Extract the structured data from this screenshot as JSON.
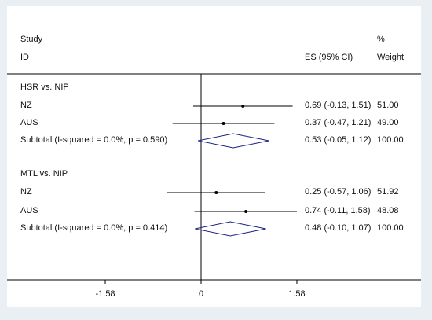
{
  "chart_data": {
    "type": "forest",
    "headers": {
      "study": "Study",
      "id": "ID",
      "es": "ES (95% CI)",
      "pct": "%",
      "weight": "Weight"
    },
    "x_ticks": [
      {
        "value": -1.58,
        "label": "-1.58"
      },
      {
        "value": 0,
        "label": "0"
      },
      {
        "value": 1.58,
        "label": "1.58"
      }
    ],
    "xlim": [
      -1.58,
      2.0
    ],
    "groups": [
      {
        "label": "HSR vs. NIP",
        "studies": [
          {
            "id": "NZ",
            "es": 0.69,
            "lo": -0.13,
            "hi": 1.51,
            "ci_text": "0.69 (-0.13, 1.51)",
            "weight": "51.00"
          },
          {
            "id": "AUS",
            "es": 0.37,
            "lo": -0.47,
            "hi": 1.21,
            "ci_text": "0.37 (-0.47, 1.21)",
            "weight": "49.00"
          }
        ],
        "subtotal": {
          "label": "Subtotal  (I-squared = 0.0%, p = 0.590)",
          "es": 0.53,
          "lo": -0.05,
          "hi": 1.12,
          "ci_text": "0.53 (-0.05, 1.12)",
          "weight": "100.00"
        }
      },
      {
        "label": "MTL vs. NIP",
        "studies": [
          {
            "id": "NZ",
            "es": 0.25,
            "lo": -0.57,
            "hi": 1.06,
            "ci_text": "0.25 (-0.57, 1.06)",
            "weight": "51.92"
          },
          {
            "id": "AUS",
            "es": 0.74,
            "lo": -0.11,
            "hi": 1.58,
            "ci_text": "0.74 (-0.11, 1.58)",
            "weight": "48.08"
          }
        ],
        "subtotal": {
          "label": "Subtotal  (I-squared = 0.0%, p = 0.414)",
          "es": 0.48,
          "lo": -0.1,
          "hi": 1.07,
          "ci_text": "0.48 (-0.10, 1.07)",
          "weight": "100.00"
        }
      }
    ],
    "colors": {
      "diamond": "#1a237e",
      "line": "#000000",
      "background": "#e9eff2"
    }
  }
}
